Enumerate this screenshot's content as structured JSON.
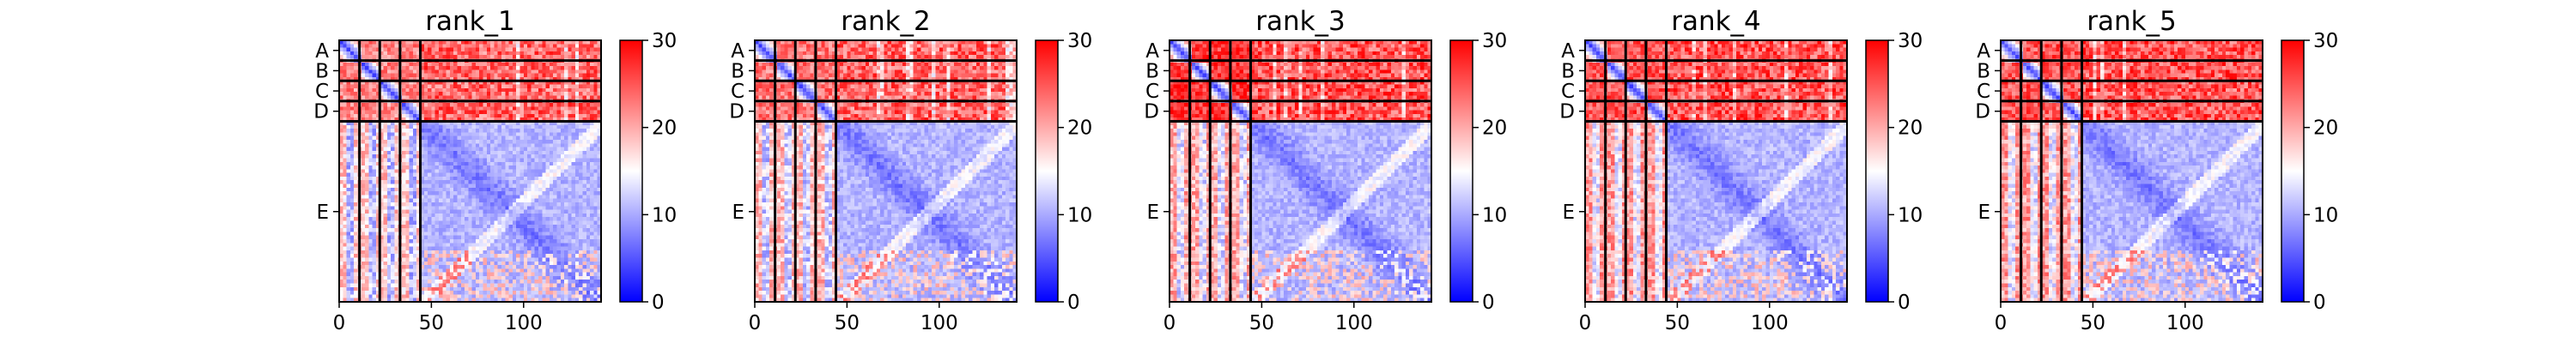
{
  "chart_data": [
    {
      "type": "heatmap",
      "title": "rank_1",
      "y_chain_labels": [
        "A",
        "B",
        "C",
        "D",
        "E"
      ],
      "x_tick_labels": [
        "0",
        "50",
        "100"
      ],
      "x_ticks": [
        0,
        50,
        100
      ],
      "chain_boundaries": [
        0,
        11,
        22,
        33,
        44,
        142
      ],
      "residue_count": 142,
      "colorbar": {
        "min": 0,
        "max": 30,
        "ticks": [
          0,
          10,
          20,
          30
        ],
        "tick_labels": [
          "0",
          "10",
          "20",
          "30"
        ],
        "colormap": "bwr"
      },
      "block_means": {
        "chain_chain_diag": 3,
        "chain_chain_off": 22,
        "chain_to_E": 24,
        "E_to_chain": 18,
        "E_E": 5
      }
    },
    {
      "type": "heatmap",
      "title": "rank_2",
      "y_chain_labels": [
        "A",
        "B",
        "C",
        "D",
        "E"
      ],
      "x_tick_labels": [
        "0",
        "50",
        "100"
      ],
      "x_ticks": [
        0,
        50,
        100
      ],
      "chain_boundaries": [
        0,
        11,
        22,
        33,
        44,
        142
      ],
      "residue_count": 142,
      "colorbar": {
        "min": 0,
        "max": 30,
        "ticks": [
          0,
          10,
          20,
          30
        ],
        "tick_labels": [
          "0",
          "10",
          "20",
          "30"
        ],
        "colormap": "bwr"
      },
      "block_means": {
        "chain_chain_diag": 3,
        "chain_chain_off": 23,
        "chain_to_E": 24,
        "E_to_chain": 19,
        "E_E": 5
      }
    },
    {
      "type": "heatmap",
      "title": "rank_3",
      "y_chain_labels": [
        "A",
        "B",
        "C",
        "D",
        "E"
      ],
      "x_tick_labels": [
        "0",
        "50",
        "100"
      ],
      "x_ticks": [
        0,
        50,
        100
      ],
      "chain_boundaries": [
        0,
        11,
        22,
        33,
        44,
        142
      ],
      "residue_count": 142,
      "colorbar": {
        "min": 0,
        "max": 30,
        "ticks": [
          0,
          10,
          20,
          30
        ],
        "tick_labels": [
          "0",
          "10",
          "20",
          "30"
        ],
        "colormap": "bwr"
      },
      "block_means": {
        "chain_chain_diag": 3,
        "chain_chain_off": 27,
        "chain_to_E": 25,
        "E_to_chain": 20,
        "E_E": 5
      }
    },
    {
      "type": "heatmap",
      "title": "rank_4",
      "y_chain_labels": [
        "A",
        "B",
        "C",
        "D",
        "E"
      ],
      "x_tick_labels": [
        "0",
        "50",
        "100"
      ],
      "x_ticks": [
        0,
        50,
        100
      ],
      "chain_boundaries": [
        0,
        11,
        22,
        33,
        44,
        142
      ],
      "residue_count": 142,
      "colorbar": {
        "min": 0,
        "max": 30,
        "ticks": [
          0,
          10,
          20,
          30
        ],
        "tick_labels": [
          "0",
          "10",
          "20",
          "30"
        ],
        "colormap": "bwr"
      },
      "block_means": {
        "chain_chain_diag": 3,
        "chain_chain_off": 25,
        "chain_to_E": 25,
        "E_to_chain": 21,
        "E_E": 5
      }
    },
    {
      "type": "heatmap",
      "title": "rank_5",
      "y_chain_labels": [
        "A",
        "B",
        "C",
        "D",
        "E"
      ],
      "x_tick_labels": [
        "0",
        "50",
        "100"
      ],
      "x_ticks": [
        0,
        50,
        100
      ],
      "chain_boundaries": [
        0,
        11,
        22,
        33,
        44,
        142
      ],
      "residue_count": 142,
      "colorbar": {
        "min": 0,
        "max": 30,
        "ticks": [
          0,
          10,
          20,
          30
        ],
        "tick_labels": [
          "0",
          "10",
          "20",
          "30"
        ],
        "colormap": "bwr"
      },
      "block_means": {
        "chain_chain_diag": 3,
        "chain_chain_off": 25,
        "chain_to_E": 25,
        "E_to_chain": 21,
        "E_E": 5
      }
    }
  ]
}
